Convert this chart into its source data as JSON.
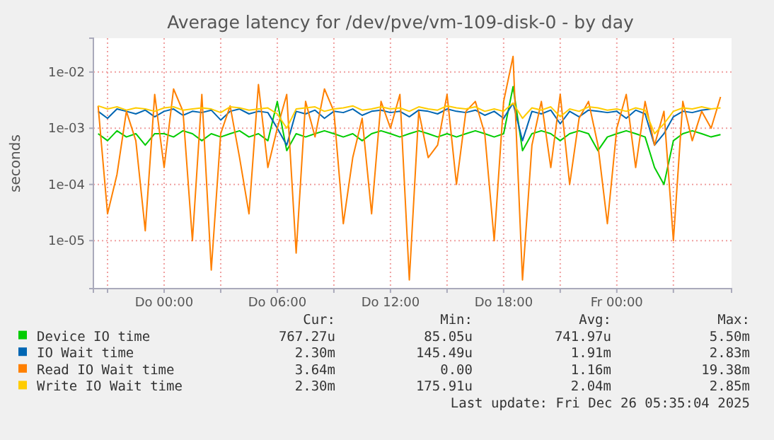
{
  "chart_data": {
    "type": "line",
    "title": "Average latency for /dev/pve/vm-109-disk-0 - by day",
    "ylabel": "seconds",
    "log": true,
    "grid": true,
    "legend": "bottom",
    "line_style": "solid",
    "ylim": [
      1.4e-06,
      0.04
    ],
    "yticks": [
      {
        "value": 1e-05,
        "label": "1e-05"
      },
      {
        "value": 0.0001,
        "label": "1e-04"
      },
      {
        "value": 0.001,
        "label": "1e-03"
      },
      {
        "value": 0.01,
        "label": "1e-02"
      }
    ],
    "xlim": [
      "2025-12-24T20:15",
      "2025-12-26T06:05"
    ],
    "xticks": [
      {
        "value": "2025-12-24T21:00",
        "label": null
      },
      {
        "value": "2025-12-25T00:00",
        "label": "Do 00:00"
      },
      {
        "value": "2025-12-25T03:00",
        "label": null
      },
      {
        "value": "2025-12-25T06:00",
        "label": "Do 06:00"
      },
      {
        "value": "2025-12-25T09:00",
        "label": null
      },
      {
        "value": "2025-12-25T12:00",
        "label": "Do 12:00"
      },
      {
        "value": "2025-12-25T15:00",
        "label": null
      },
      {
        "value": "2025-12-25T18:00",
        "label": "Do 18:00"
      },
      {
        "value": "2025-12-25T21:00",
        "label": null
      },
      {
        "value": "2025-12-26T00:00",
        "label": "Fr 00:00"
      },
      {
        "value": "2025-12-26T03:00",
        "label": null
      }
    ],
    "x": [
      "2025-12-24T20:30",
      "2025-12-24T21:00",
      "2025-12-24T21:30",
      "2025-12-24T22:00",
      "2025-12-24T22:30",
      "2025-12-24T23:00",
      "2025-12-24T23:30",
      "2025-12-25T00:00",
      "2025-12-25T00:30",
      "2025-12-25T01:00",
      "2025-12-25T01:30",
      "2025-12-25T02:00",
      "2025-12-25T02:30",
      "2025-12-25T03:00",
      "2025-12-25T03:30",
      "2025-12-25T04:00",
      "2025-12-25T04:30",
      "2025-12-25T05:00",
      "2025-12-25T05:30",
      "2025-12-25T06:00",
      "2025-12-25T06:30",
      "2025-12-25T07:00",
      "2025-12-25T07:30",
      "2025-12-25T08:00",
      "2025-12-25T08:30",
      "2025-12-25T09:00",
      "2025-12-25T09:30",
      "2025-12-25T10:00",
      "2025-12-25T10:30",
      "2025-12-25T11:00",
      "2025-12-25T11:30",
      "2025-12-25T12:00",
      "2025-12-25T12:30",
      "2025-12-25T13:00",
      "2025-12-25T13:30",
      "2025-12-25T14:00",
      "2025-12-25T14:30",
      "2025-12-25T15:00",
      "2025-12-25T15:30",
      "2025-12-25T16:00",
      "2025-12-25T16:30",
      "2025-12-25T17:00",
      "2025-12-25T17:30",
      "2025-12-25T18:00",
      "2025-12-25T18:30",
      "2025-12-25T19:00",
      "2025-12-25T19:30",
      "2025-12-25T20:00",
      "2025-12-25T20:30",
      "2025-12-25T21:00",
      "2025-12-25T21:30",
      "2025-12-25T22:00",
      "2025-12-25T22:30",
      "2025-12-25T23:00",
      "2025-12-25T23:30",
      "2025-12-26T00:00",
      "2025-12-26T00:30",
      "2025-12-26T01:00",
      "2025-12-26T01:30",
      "2025-12-26T02:00",
      "2025-12-26T02:30",
      "2025-12-26T03:00",
      "2025-12-26T03:30",
      "2025-12-26T04:00",
      "2025-12-26T04:30",
      "2025-12-26T05:00",
      "2025-12-26T05:30"
    ],
    "series": [
      {
        "name": "Device IO time",
        "color": "#00cc00",
        "values": [
          0.0008,
          0.0006,
          0.0009,
          0.0007,
          0.0008,
          0.0005,
          0.0008,
          0.0008,
          0.0007,
          0.0009,
          0.0008,
          0.0006,
          0.0008,
          0.0007,
          0.0008,
          0.0009,
          0.0007,
          0.0008,
          0.0006,
          0.003,
          0.0004,
          0.0008,
          0.0007,
          0.0008,
          0.0009,
          0.0008,
          0.0007,
          0.0008,
          0.0006,
          0.0008,
          0.0009,
          0.0008,
          0.0007,
          0.0008,
          0.0009,
          0.0008,
          0.0007,
          0.0008,
          0.0007,
          0.0008,
          0.0009,
          0.0008,
          0.0007,
          0.0008,
          0.0055,
          0.0004,
          0.0008,
          0.0009,
          0.0008,
          0.0006,
          0.0008,
          0.0009,
          0.0008,
          0.0004,
          0.0007,
          0.0008,
          0.0009,
          0.0008,
          0.0007,
          0.0002,
          0.0001,
          0.0006,
          0.0008,
          0.0009,
          0.0008,
          0.0007,
          0.00077
        ]
      },
      {
        "name": "IO Wait time",
        "color": "#0066b3",
        "values": [
          0.002,
          0.0015,
          0.0022,
          0.002,
          0.0018,
          0.0021,
          0.0016,
          0.002,
          0.0022,
          0.0017,
          0.002,
          0.0019,
          0.0021,
          0.0014,
          0.002,
          0.0022,
          0.0018,
          0.002,
          0.0019,
          0.001,
          0.0005,
          0.002,
          0.0018,
          0.0021,
          0.0015,
          0.002,
          0.0019,
          0.0022,
          0.0017,
          0.002,
          0.0021,
          0.0019,
          0.002,
          0.0016,
          0.0021,
          0.002,
          0.0018,
          0.0022,
          0.002,
          0.0019,
          0.0021,
          0.0017,
          0.002,
          0.0015,
          0.0028,
          0.0006,
          0.002,
          0.0018,
          0.0021,
          0.0012,
          0.002,
          0.0016,
          0.0021,
          0.002,
          0.0019,
          0.002,
          0.0015,
          0.0021,
          0.0018,
          0.0005,
          0.0008,
          0.0016,
          0.002,
          0.0019,
          0.0021,
          0.0022,
          null
        ]
      },
      {
        "name": "Read IO Wait time",
        "color": "#ff8000",
        "values": [
          0.0025,
          3e-05,
          0.00015,
          0.002,
          0.0006,
          1.5e-05,
          0.004,
          0.0002,
          0.005,
          0.002,
          1e-05,
          0.004,
          3e-06,
          0.0008,
          0.0025,
          0.0003,
          3e-05,
          0.006,
          0.0002,
          0.001,
          0.004,
          6e-06,
          0.003,
          0.0007,
          0.005,
          0.002,
          2e-05,
          0.0003,
          0.0015,
          3e-05,
          0.003,
          0.001,
          0.004,
          2e-06,
          0.002,
          0.0003,
          0.0005,
          0.004,
          0.0001,
          0.002,
          0.003,
          0.0008,
          1e-05,
          0.003,
          0.019,
          2e-06,
          0.0005,
          0.003,
          0.0002,
          0.004,
          0.0001,
          0.0015,
          0.003,
          0.0005,
          2e-05,
          0.001,
          0.004,
          0.0002,
          0.003,
          0.0005,
          0.002,
          1e-05,
          0.003,
          0.0006,
          0.002,
          0.001,
          0.0036
        ]
      },
      {
        "name": "Write IO Wait time",
        "color": "#ffcc00",
        "values": [
          0.0025,
          0.0022,
          0.0024,
          0.0021,
          0.0023,
          0.0022,
          0.002,
          0.0023,
          0.0024,
          0.0021,
          0.0022,
          0.0023,
          0.0022,
          0.0019,
          0.0024,
          0.0023,
          0.0021,
          0.0022,
          0.0023,
          0.0018,
          0.001,
          0.0022,
          0.0023,
          0.0024,
          0.002,
          0.0022,
          0.0023,
          0.0025,
          0.0021,
          0.0022,
          0.0024,
          0.0022,
          0.0023,
          0.002,
          0.0024,
          0.0022,
          0.0021,
          0.0025,
          0.0023,
          0.0022,
          0.0024,
          0.002,
          0.0022,
          0.002,
          0.0028,
          0.0015,
          0.0023,
          0.0021,
          0.0024,
          0.0016,
          0.0022,
          0.002,
          0.0024,
          0.0023,
          0.0021,
          0.0022,
          0.002,
          0.0023,
          0.0021,
          0.0008,
          0.0012,
          0.002,
          0.0023,
          0.0022,
          0.0024,
          0.0022,
          0.0023
        ]
      }
    ],
    "annotations": [
      "Cur:",
      "Min:",
      "Avg:",
      "Max:",
      "767.27u",
      "85.05u",
      "741.97u",
      "5.50m",
      "2.30m",
      "145.49u",
      "1.91m",
      "2.83m",
      "3.64m",
      "0.00",
      "1.16m",
      "19.38m",
      "2.30m",
      "175.91u",
      "2.04m",
      "2.85m",
      "Last update: Fri Dec 26 05:35:04 2025"
    ]
  }
}
